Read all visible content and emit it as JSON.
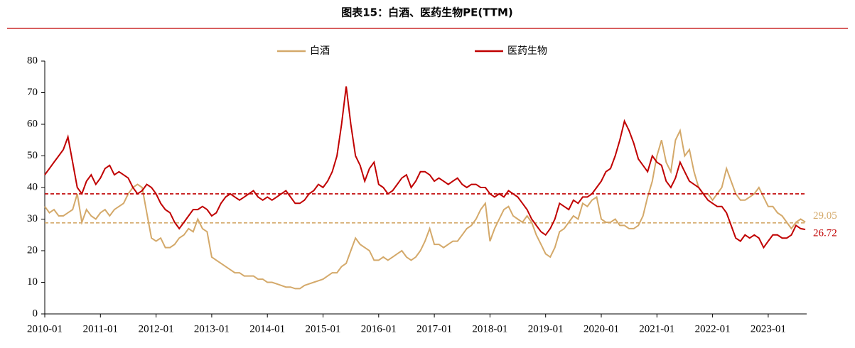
{
  "chart_data": {
    "type": "line",
    "title": "图表15：白酒、医药生物PE(TTM)",
    "x": [
      "2010-01",
      "2010-02",
      "2010-03",
      "2010-04",
      "2010-05",
      "2010-06",
      "2010-07",
      "2010-08",
      "2010-09",
      "2010-10",
      "2010-11",
      "2010-12",
      "2011-01",
      "2011-02",
      "2011-03",
      "2011-04",
      "2011-05",
      "2011-06",
      "2011-07",
      "2011-08",
      "2011-09",
      "2011-10",
      "2011-11",
      "2011-12",
      "2012-01",
      "2012-02",
      "2012-03",
      "2012-04",
      "2012-05",
      "2012-06",
      "2012-07",
      "2012-08",
      "2012-09",
      "2012-10",
      "2012-11",
      "2012-12",
      "2013-01",
      "2013-02",
      "2013-03",
      "2013-04",
      "2013-05",
      "2013-06",
      "2013-07",
      "2013-08",
      "2013-09",
      "2013-10",
      "2013-11",
      "2013-12",
      "2014-01",
      "2014-02",
      "2014-03",
      "2014-04",
      "2014-05",
      "2014-06",
      "2014-07",
      "2014-08",
      "2014-09",
      "2014-10",
      "2014-11",
      "2014-12",
      "2015-01",
      "2015-02",
      "2015-03",
      "2015-04",
      "2015-05",
      "2015-06",
      "2015-07",
      "2015-08",
      "2015-09",
      "2015-10",
      "2015-11",
      "2015-12",
      "2016-01",
      "2016-02",
      "2016-03",
      "2016-04",
      "2016-05",
      "2016-06",
      "2016-07",
      "2016-08",
      "2016-09",
      "2016-10",
      "2016-11",
      "2016-12",
      "2017-01",
      "2017-02",
      "2017-03",
      "2017-04",
      "2017-05",
      "2017-06",
      "2017-07",
      "2017-08",
      "2017-09",
      "2017-10",
      "2017-11",
      "2017-12",
      "2018-01",
      "2018-02",
      "2018-03",
      "2018-04",
      "2018-05",
      "2018-06",
      "2018-07",
      "2018-08",
      "2018-09",
      "2018-10",
      "2018-11",
      "2018-12",
      "2019-01",
      "2019-02",
      "2019-03",
      "2019-04",
      "2019-05",
      "2019-06",
      "2019-07",
      "2019-08",
      "2019-09",
      "2019-10",
      "2019-11",
      "2019-12",
      "2020-01",
      "2020-02",
      "2020-03",
      "2020-04",
      "2020-05",
      "2020-06",
      "2020-07",
      "2020-08",
      "2020-09",
      "2020-10",
      "2020-11",
      "2020-12",
      "2021-01",
      "2021-02",
      "2021-03",
      "2021-04",
      "2021-05",
      "2021-06",
      "2021-07",
      "2021-08",
      "2021-09",
      "2021-10",
      "2021-11",
      "2021-12",
      "2022-01",
      "2022-02",
      "2022-03",
      "2022-04",
      "2022-05",
      "2022-06",
      "2022-07",
      "2022-08",
      "2022-09",
      "2022-10",
      "2022-11",
      "2022-12",
      "2023-01",
      "2023-02",
      "2023-03",
      "2023-04",
      "2023-05",
      "2023-06",
      "2023-07",
      "2023-08",
      "2023-09"
    ],
    "xticks": [
      "2010-01",
      "2011-01",
      "2012-01",
      "2013-01",
      "2014-01",
      "2015-01",
      "2016-01",
      "2017-01",
      "2018-01",
      "2019-01",
      "2020-01",
      "2021-01",
      "2022-01",
      "2023-01"
    ],
    "ylim": [
      0,
      80
    ],
    "yticks": [
      0,
      10,
      20,
      30,
      40,
      50,
      60,
      70,
      80
    ],
    "legend": "top",
    "series": [
      {
        "name": "白酒",
        "color": "#d4a96a",
        "values": [
          34,
          32,
          33,
          31,
          31,
          32,
          33,
          38,
          29,
          33,
          31,
          30,
          32,
          33,
          31,
          33,
          34,
          35,
          38,
          40,
          41,
          40,
          32,
          24,
          23,
          24,
          21,
          21,
          22,
          24,
          25,
          27,
          26,
          30,
          27,
          26,
          18,
          17,
          16,
          15,
          14,
          13,
          13,
          12,
          12,
          12,
          11,
          11,
          10,
          10,
          9.5,
          9,
          8.5,
          8.5,
          8,
          8,
          9,
          9.5,
          10,
          10.5,
          11,
          12,
          13,
          13,
          15,
          16,
          20,
          24,
          22,
          21,
          20,
          17,
          17,
          18,
          17,
          18,
          19,
          20,
          18,
          17,
          18,
          20,
          23,
          27,
          22,
          22,
          21,
          22,
          23,
          23,
          25,
          27,
          28,
          30,
          33,
          35,
          23,
          27,
          30,
          33,
          34,
          31,
          30,
          29,
          31,
          29,
          25,
          22,
          19,
          18,
          21,
          26,
          27,
          29,
          31,
          30,
          35,
          34,
          36,
          37,
          30,
          29,
          29,
          30,
          28,
          28,
          27,
          27,
          28,
          31,
          37,
          42,
          50,
          55,
          48,
          45,
          55,
          58,
          50,
          52,
          45,
          40,
          38,
          38,
          36,
          38,
          40,
          46,
          42,
          38,
          36,
          36,
          37,
          38,
          40,
          37,
          34,
          34,
          32,
          31,
          29,
          27,
          29,
          30,
          29.05
        ],
        "mean": 28.8
      },
      {
        "name": "医药生物",
        "color": "#c00000",
        "values": [
          44,
          46,
          48,
          50,
          52,
          56,
          48,
          40,
          38,
          42,
          44,
          41,
          43,
          46,
          47,
          44,
          45,
          44,
          43,
          40,
          38,
          39,
          41,
          40,
          38,
          35,
          33,
          32,
          29,
          27,
          29,
          31,
          33,
          33,
          34,
          33,
          31,
          32,
          35,
          37,
          38,
          37,
          36,
          37,
          38,
          39,
          37,
          36,
          37,
          36,
          37,
          38,
          39,
          37,
          35,
          35,
          36,
          38,
          39,
          41,
          40,
          42,
          45,
          50,
          60,
          72,
          60,
          50,
          47,
          42,
          46,
          48,
          41,
          40,
          38,
          39,
          41,
          43,
          44,
          40,
          42,
          45,
          45,
          44,
          42,
          43,
          42,
          41,
          42,
          43,
          41,
          40,
          41,
          41,
          40,
          40,
          38,
          37,
          38,
          37,
          39,
          38,
          37,
          35,
          33,
          30,
          28,
          26,
          25,
          27,
          30,
          35,
          34,
          33,
          36,
          35,
          37,
          37,
          38,
          40,
          42,
          45,
          46,
          50,
          55,
          61,
          58,
          54,
          49,
          47,
          45,
          50,
          48,
          47,
          42,
          40,
          43,
          48,
          45,
          42,
          41,
          40,
          38,
          36,
          35,
          34,
          34,
          32,
          28,
          24,
          23,
          25,
          24,
          25,
          24,
          21,
          23,
          25,
          25,
          24,
          24,
          25,
          28,
          27,
          26.72
        ],
        "mean": 38
      }
    ]
  }
}
